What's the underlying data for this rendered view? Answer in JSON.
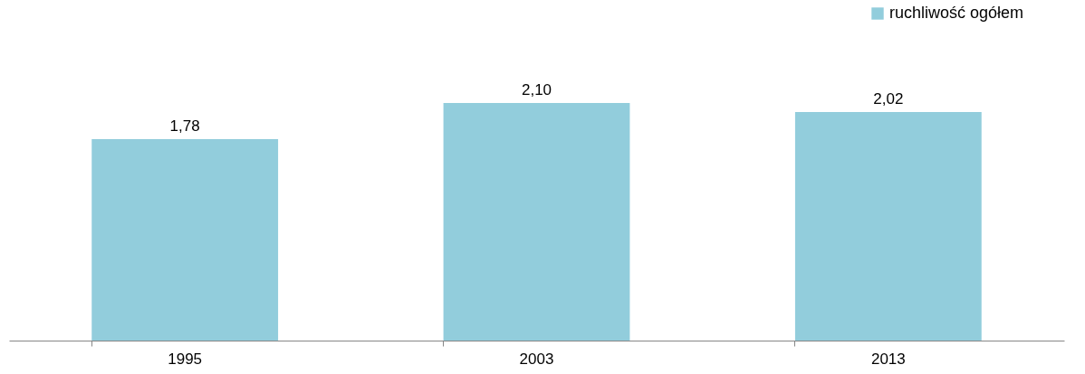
{
  "chart_data": {
    "type": "bar",
    "categories": [
      "1995",
      "2003",
      "2013"
    ],
    "series": [
      {
        "name": "ruchliwość ogółem",
        "color": "#92cddc",
        "values": [
          1.78,
          2.1,
          2.02
        ],
        "value_labels": [
          "1,78",
          "2,10",
          "2,02"
        ]
      }
    ],
    "legend": "top right"
  }
}
